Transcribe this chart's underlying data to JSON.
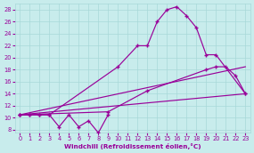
{
  "xlabel": "Windchill (Refroidissement éolien,°C)",
  "xlim": [
    -0.5,
    23.5
  ],
  "ylim": [
    7.5,
    29.0
  ],
  "yticks": [
    8,
    10,
    12,
    14,
    16,
    18,
    20,
    22,
    24,
    26,
    28
  ],
  "xticks": [
    0,
    1,
    2,
    3,
    4,
    5,
    6,
    7,
    8,
    9,
    10,
    11,
    12,
    13,
    14,
    15,
    16,
    17,
    18,
    19,
    20,
    21,
    22,
    23
  ],
  "background_color": "#c8ecec",
  "grid_color": "#a8d8d8",
  "line_color": "#990099",
  "zigzag_x": [
    0,
    1,
    2,
    3,
    4,
    5,
    6,
    7,
    8,
    9
  ],
  "zigzag_y": [
    10.5,
    10.5,
    10.5,
    10.5,
    8.5,
    10.5,
    8.5,
    9.5,
    7.5,
    10.5
  ],
  "peak_x": [
    0,
    1,
    2,
    3,
    10,
    12,
    13,
    14,
    15,
    16,
    17,
    18,
    19,
    20,
    23
  ],
  "peak_y": [
    10.5,
    10.5,
    10.5,
    10.5,
    18.5,
    22.0,
    22.0,
    26.0,
    28.0,
    28.5,
    27.0,
    25.0,
    20.5,
    20.5,
    14.0
  ],
  "upper_line_x": [
    0,
    23
  ],
  "upper_line_y": [
    10.5,
    18.5
  ],
  "lower_line_x": [
    0,
    23
  ],
  "lower_line_y": [
    10.5,
    14.0
  ],
  "mid_curve_x": [
    0,
    9,
    13,
    19,
    20,
    21,
    22,
    23
  ],
  "mid_curve_y": [
    10.5,
    11.0,
    14.5,
    18.0,
    18.5,
    18.5,
    17.0,
    14.0
  ]
}
